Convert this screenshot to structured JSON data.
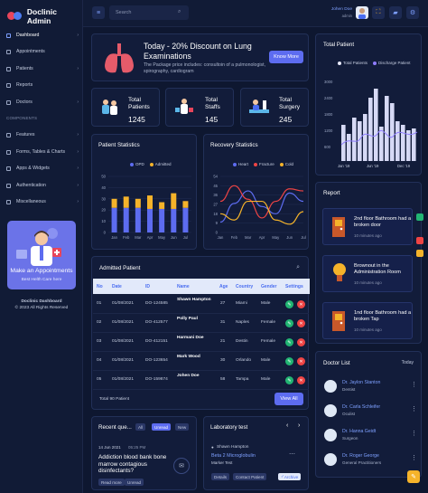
{
  "app": {
    "title": "Doclinic Admin"
  },
  "sidebar": {
    "items": [
      {
        "label": "Dashboard"
      },
      {
        "label": "Appointments"
      },
      {
        "label": "Patients"
      },
      {
        "label": "Reports"
      },
      {
        "label": "Doctors"
      }
    ],
    "section": "COMPONENTS",
    "components": [
      {
        "label": "Features"
      },
      {
        "label": "Forms, Tables & Charts"
      },
      {
        "label": "Apps & Widgets"
      },
      {
        "label": "Authentication"
      },
      {
        "label": "Miscellaneous"
      }
    ],
    "promo": {
      "title": "Make an Appointments",
      "link": "Best Helth Care here"
    },
    "footer": {
      "line1": "Doclinic Dashboard",
      "line2": "© 2023 All Rights Reserved"
    }
  },
  "topbar": {
    "search_placeholder": "Search",
    "user_name": "Johen Doe",
    "user_role": "admin"
  },
  "discount": {
    "title": "Today - 20% Discount on Lung Examinations",
    "text": "The Package price includes: consultoin of a pulmonologist, spirography, cardiogram",
    "button": "Know More"
  },
  "stats": [
    {
      "label": "Total Patients",
      "value": "1245"
    },
    {
      "label": "Total Staffs",
      "value": "145"
    },
    {
      "label": "Total Surgery",
      "value": "245"
    }
  ],
  "total_patient": {
    "title": "Total Patient",
    "legend": [
      "Total Patients",
      "Discharge Patient"
    ],
    "chart_data": {
      "type": "bar",
      "categories": [
        "Jan '19",
        "Jun '19",
        "Dec '19"
      ],
      "y_ticks": [
        "3000",
        "2400",
        "1800",
        "1200",
        "600"
      ]
    }
  },
  "patient_statistics": {
    "title": "Patient Statistics",
    "chart_data": {
      "type": "bar",
      "categories": [
        "Jan",
        "Feb",
        "Mar",
        "Apr",
        "May",
        "Jun",
        "Jul"
      ],
      "series": [
        {
          "name": "OPD",
          "values": [
            22,
            22,
            22,
            21,
            21,
            21,
            22
          ]
        },
        {
          "name": "Admitted",
          "values": [
            8,
            10,
            8,
            12,
            6,
            14,
            6
          ]
        }
      ],
      "y_ticks": [
        "50",
        "40",
        "30",
        "20",
        "10",
        "0"
      ],
      "ylim": [
        0,
        50
      ]
    }
  },
  "recovery_statistics": {
    "title": "Recovery Statistics",
    "chart_data": {
      "type": "line",
      "categories": [
        "Jan",
        "Feb",
        "Mar",
        "Apr",
        "May",
        "Jun",
        "Jul"
      ],
      "series": [
        {
          "name": "Heart",
          "values": [
            10,
            28,
            40,
            25,
            18,
            38,
            30
          ]
        },
        {
          "name": "Fracture",
          "values": [
            30,
            45,
            32,
            14,
            30,
            42,
            40
          ]
        },
        {
          "name": "Cold",
          "values": [
            18,
            12,
            30,
            30,
            12,
            8,
            20
          ]
        }
      ],
      "y_ticks": [
        "54",
        "45",
        "36",
        "27",
        "18",
        "9",
        "0"
      ],
      "ylim": [
        0,
        54
      ]
    }
  },
  "admitted": {
    "title": "Admitted Patient",
    "columns": [
      "No",
      "Date",
      "ID",
      "Name",
      "Age",
      "Country",
      "Gender",
      "Settings"
    ],
    "rows": [
      {
        "no": "01",
        "date": "01/08/2021",
        "id": "DO-124585",
        "name": "Shawn Hampton",
        "age": "27",
        "country": "Miami",
        "gender": "Male"
      },
      {
        "no": "02",
        "date": "01/08/2021",
        "id": "DO-412577",
        "name": "Polly Paul",
        "age": "31",
        "country": "Naples",
        "gender": "Female"
      },
      {
        "no": "03",
        "date": "01/08/2021",
        "id": "DO-412151",
        "name": "Harmani Doe",
        "age": "21",
        "country": "Destin",
        "gender": "Female"
      },
      {
        "no": "04",
        "date": "01/08/2021",
        "id": "DO-123654",
        "name": "Mark Wood",
        "age": "30",
        "country": "Orlando",
        "gender": "Male"
      },
      {
        "no": "05",
        "date": "01/08/2021",
        "id": "DO-159874",
        "name": "Johen Doe",
        "age": "58",
        "country": "Tampa",
        "gender": "Male"
      }
    ],
    "total": "Total 90 Patient",
    "view_all": "View All"
  },
  "questions": {
    "title": "Recent que...",
    "filters": [
      "All",
      "Unread",
      "New"
    ],
    "date": "14 Jun 2021",
    "time": "05:25 PM",
    "text": "Addiction blood bank bone marrow contagious disinfectants?",
    "tags": [
      "Read more",
      "Unread"
    ]
  },
  "lab": {
    "title": "Laboratory test",
    "patient": "Shawn Hampton",
    "test": "Beta 2 Microglobulin",
    "marker": "Marker Test",
    "buttons": [
      "Details",
      "Contact Patient",
      "Archive"
    ]
  },
  "report": {
    "title": "Report",
    "items": [
      {
        "title": "2nd floor Bathroom had a broken door",
        "time": "10 minutes ago"
      },
      {
        "title": "Brownout in the Administration Room",
        "time": "10 minutes ago"
      },
      {
        "title": "1nd floor Bathroom had a broken Tap",
        "time": "10 minutes ago"
      }
    ]
  },
  "doctors": {
    "title": "Doctor List",
    "filter": "Today",
    "items": [
      {
        "name": "Dr. Jaylon Stanton",
        "spec": "Dentist"
      },
      {
        "name": "Dr. Carla Schleifer",
        "spec": "Oculist"
      },
      {
        "name": "Dr. Hanna Geidt",
        "spec": "Surgeon"
      },
      {
        "name": "Dr. Roger George",
        "spec": "General Practitioners"
      }
    ]
  },
  "colors": {
    "accent": "#5d6cf0",
    "bg": "#0e1730",
    "card": "#121c3a",
    "yellow": "#f5b32a",
    "red": "#ef4444",
    "green": "#22b573"
  }
}
